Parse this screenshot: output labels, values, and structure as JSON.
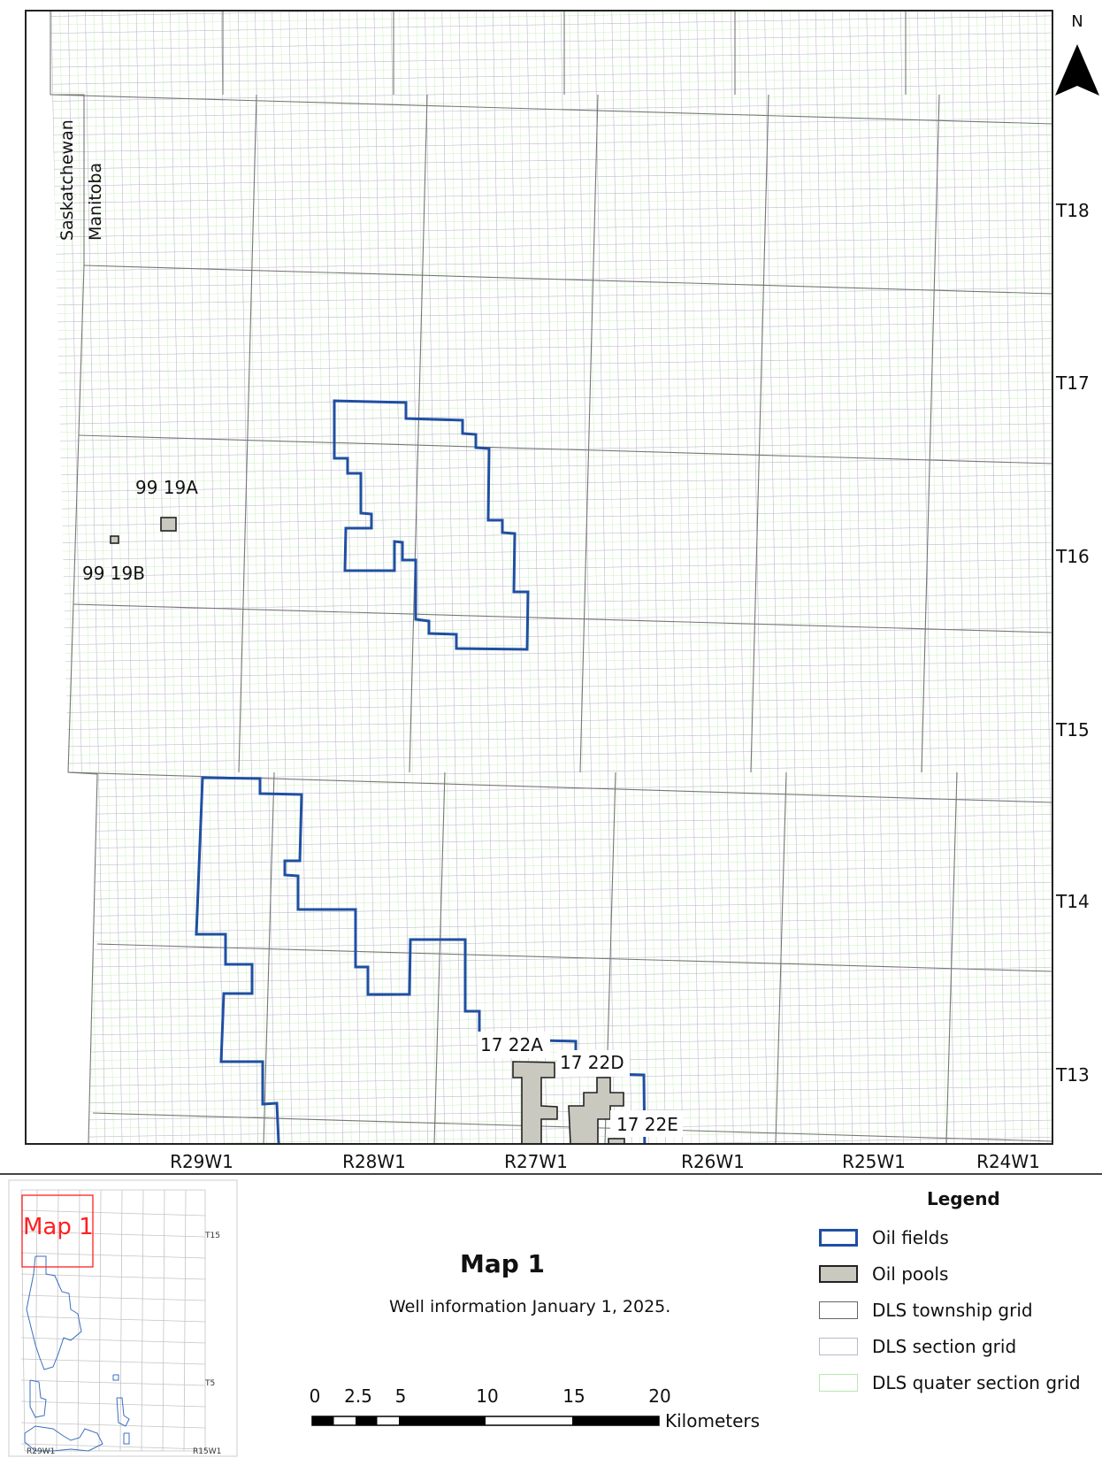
{
  "map": {
    "north_label": "N",
    "province_labels": [
      "Saskatchewan",
      "Manitoba"
    ],
    "township_labels": [
      "T18",
      "T17",
      "T16",
      "T15",
      "T14",
      "T13"
    ],
    "range_labels": [
      "R29W1",
      "R28W1",
      "R27W1",
      "R26W1",
      "R25W1",
      "R24W1"
    ],
    "pool_labels": [
      "99 19A",
      "99 19B",
      "17 22A",
      "17 22D",
      "17 22E"
    ]
  },
  "layout_title": "Map 1",
  "layout_subtitle": "Well information January 1, 2025.",
  "legend": {
    "title": "Legend",
    "items": [
      {
        "label": "Oil fields",
        "type": "oil-field",
        "color": "#1f4fa3"
      },
      {
        "label": "Oil pools",
        "type": "oil-pool",
        "color": "#c9c9c0"
      },
      {
        "label": "DLS township grid",
        "type": "township",
        "color": "#666666"
      },
      {
        "label": "DLS section grid",
        "type": "section",
        "color": "#bdb8c8"
      },
      {
        "label": "DLS quater section grid",
        "type": "quarter",
        "color": "#c8efc0"
      }
    ]
  },
  "scale_bar": {
    "ticks": [
      "0",
      "2.5",
      "5",
      "10",
      "15",
      "20"
    ],
    "unit": "Kilometers"
  },
  "inset": {
    "label": "Map 1",
    "township_labels": [
      "T15",
      "T5"
    ],
    "range_labels": [
      "R29W1",
      "R15W1"
    ]
  }
}
